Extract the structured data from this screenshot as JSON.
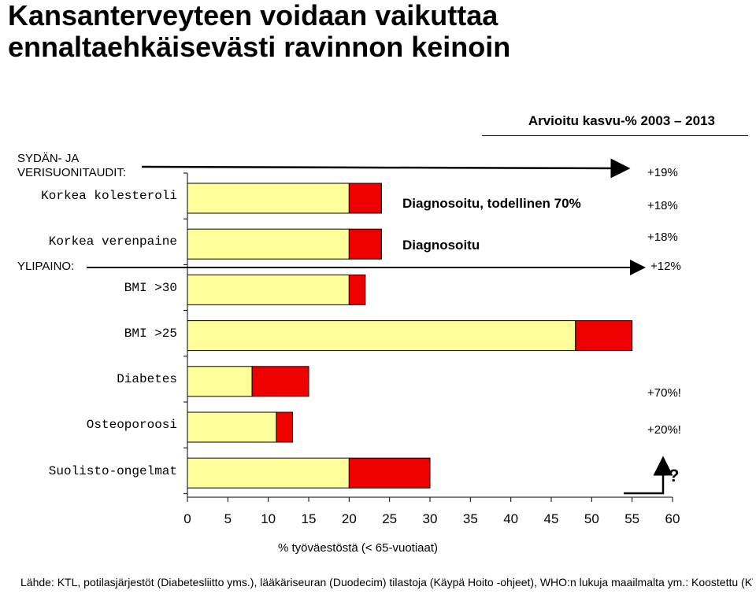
{
  "title": "Kansanterveyteen voidaan vaikuttaa ennaltaehkäisevästi ravinnon keinoin",
  "header_label": "Arvioitu kasvu-% 2003 – 2013",
  "groups": {
    "cardio": "SYDÄN- JA VERISUONITAUDIT:",
    "weight": "YLIPAINO:"
  },
  "annotations": {
    "diagnosed_actual": "Diagnosoitu, todellinen 70%",
    "diagnosed": "Diagnosoitu"
  },
  "growth": {
    "cardio": "+19%",
    "cholesterol": "+18%",
    "hypertension": "+18%",
    "obesity": "+12%",
    "diabetes": "+70%!",
    "osteoporosis": "+20%!",
    "bowel": "?"
  },
  "source": "Lähde: KTL, potilasjärjestöt (Diabetesliitto yms.), lääkäriseuran (Duodecim) tilastoja (Käypä Hoito -ohjeet), WHO:n lukuja maailmalta ym.: Koostettu (KTL, potilasjärjestöt, WHO ym.).",
  "chart_data": {
    "type": "bar",
    "orientation": "horizontal",
    "stacked": true,
    "categories": [
      "Korkea kolesteroli",
      "Korkea verenpaine",
      "BMI >30",
      "BMI >25",
      "Diabetes",
      "Osteoporoosi",
      "Suolisto-ongelmat"
    ],
    "series": [
      {
        "values": [
          20,
          20,
          20,
          48,
          8,
          11,
          20
        ],
        "color": "#ffff99"
      },
      {
        "values": [
          4,
          4,
          2,
          7,
          7,
          2,
          10
        ],
        "color": "#ee0000"
      }
    ],
    "xlabel": "% työväestöstä (< 65-vuotiaat)",
    "xlim": [
      0,
      60
    ],
    "xticks": [
      0,
      5,
      10,
      15,
      20,
      25,
      30,
      35,
      40,
      45,
      50,
      55,
      60
    ]
  }
}
